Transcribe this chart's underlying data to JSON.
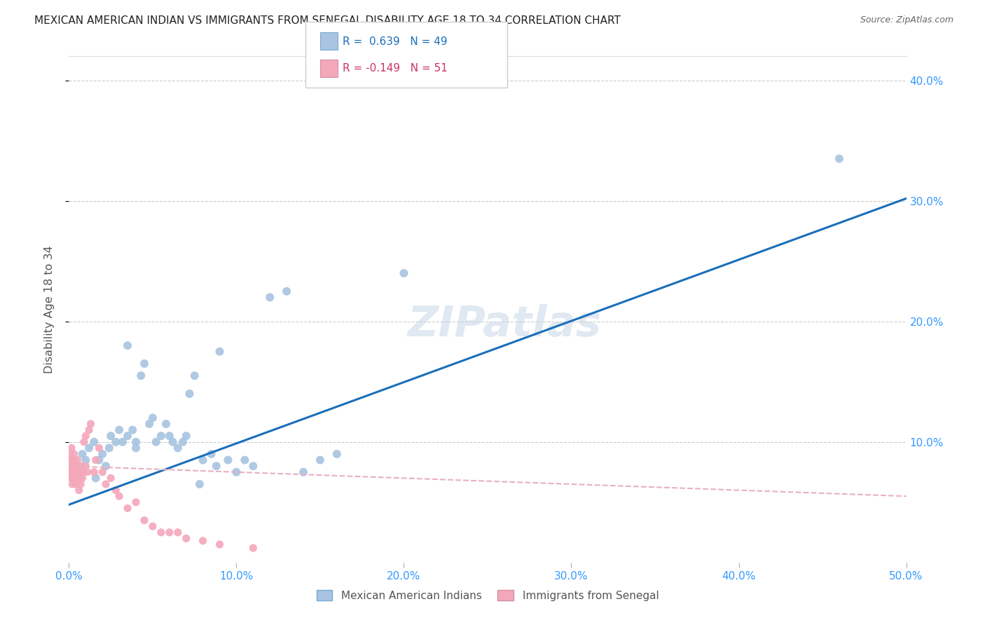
{
  "title": "MEXICAN AMERICAN INDIAN VS IMMIGRANTS FROM SENEGAL DISABILITY AGE 18 TO 34 CORRELATION CHART",
  "source": "Source: ZipAtlas.com",
  "ylabel": "Disability Age 18 to 34",
  "xlim": [
    0.0,
    0.5
  ],
  "ylim": [
    0.0,
    0.42
  ],
  "xticks": [
    0.0,
    0.1,
    0.2,
    0.3,
    0.4,
    0.5
  ],
  "yticks": [
    0.1,
    0.2,
    0.3,
    0.4
  ],
  "xticklabels": [
    "0.0%",
    "10.0%",
    "20.0%",
    "30.0%",
    "40.0%",
    "50.0%"
  ],
  "yticklabels": [
    "10.0%",
    "20.0%",
    "30.0%",
    "40.0%"
  ],
  "blue_color": "#a8c4e0",
  "pink_color": "#f4a7b9",
  "blue_line_color": "#1a6fba",
  "pink_line_color": "#e8b0be",
  "blue_scatter_x": [
    0.005,
    0.008,
    0.01,
    0.012,
    0.015,
    0.016,
    0.018,
    0.02,
    0.022,
    0.024,
    0.025,
    0.028,
    0.03,
    0.032,
    0.035,
    0.035,
    0.038,
    0.04,
    0.04,
    0.043,
    0.045,
    0.048,
    0.05,
    0.052,
    0.055,
    0.058,
    0.06,
    0.062,
    0.065,
    0.068,
    0.07,
    0.072,
    0.075,
    0.078,
    0.08,
    0.085,
    0.088,
    0.09,
    0.095,
    0.1,
    0.105,
    0.11,
    0.12,
    0.13,
    0.14,
    0.15,
    0.16,
    0.2,
    0.46
  ],
  "blue_scatter_y": [
    0.075,
    0.09,
    0.085,
    0.095,
    0.1,
    0.07,
    0.085,
    0.09,
    0.08,
    0.095,
    0.105,
    0.1,
    0.11,
    0.1,
    0.18,
    0.105,
    0.11,
    0.095,
    0.1,
    0.155,
    0.165,
    0.115,
    0.12,
    0.1,
    0.105,
    0.115,
    0.105,
    0.1,
    0.095,
    0.1,
    0.105,
    0.14,
    0.155,
    0.065,
    0.085,
    0.09,
    0.08,
    0.175,
    0.085,
    0.075,
    0.085,
    0.08,
    0.22,
    0.225,
    0.075,
    0.085,
    0.09,
    0.24,
    0.335
  ],
  "pink_scatter_x": [
    0.0005,
    0.0008,
    0.001,
    0.001,
    0.001,
    0.0015,
    0.002,
    0.002,
    0.002,
    0.0025,
    0.003,
    0.003,
    0.003,
    0.004,
    0.004,
    0.004,
    0.005,
    0.005,
    0.005,
    0.006,
    0.006,
    0.006,
    0.007,
    0.007,
    0.008,
    0.008,
    0.009,
    0.01,
    0.01,
    0.011,
    0.012,
    0.013,
    0.015,
    0.016,
    0.018,
    0.02,
    0.022,
    0.025,
    0.028,
    0.03,
    0.035,
    0.04,
    0.045,
    0.05,
    0.055,
    0.06,
    0.065,
    0.07,
    0.08,
    0.09,
    0.11
  ],
  "pink_scatter_y": [
    0.09,
    0.08,
    0.075,
    0.085,
    0.07,
    0.095,
    0.065,
    0.08,
    0.075,
    0.07,
    0.085,
    0.09,
    0.08,
    0.075,
    0.065,
    0.08,
    0.07,
    0.075,
    0.085,
    0.06,
    0.07,
    0.075,
    0.08,
    0.065,
    0.07,
    0.075,
    0.1,
    0.105,
    0.08,
    0.075,
    0.11,
    0.115,
    0.075,
    0.085,
    0.095,
    0.075,
    0.065,
    0.07,
    0.06,
    0.055,
    0.045,
    0.05,
    0.035,
    0.03,
    0.025,
    0.025,
    0.025,
    0.02,
    0.018,
    0.015,
    0.012
  ],
  "blue_line_x": [
    0.0,
    0.5
  ],
  "blue_line_y": [
    0.048,
    0.302
  ],
  "pink_line_x": [
    0.0,
    0.5
  ],
  "pink_line_y": [
    0.08,
    0.055
  ],
  "legend_blue_text": "R =  0.639   N = 49",
  "legend_pink_text": "R = -0.149   N = 51",
  "bottom_legend_blue": "Mexican American Indians",
  "bottom_legend_pink": "Immigrants from Senegal"
}
